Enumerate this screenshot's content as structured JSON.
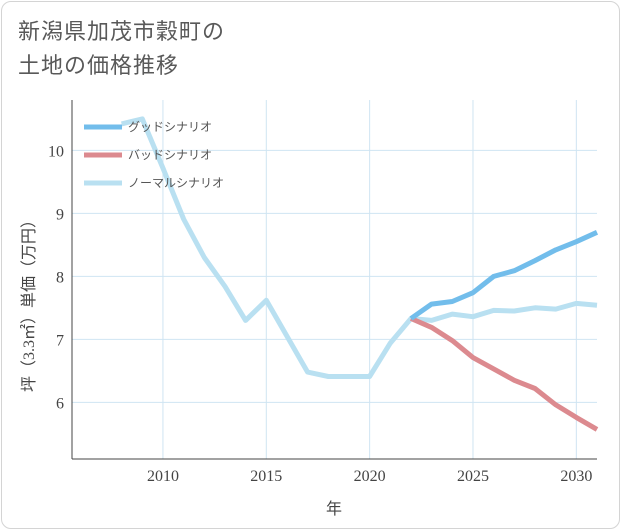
{
  "title": {
    "line1": "新潟県加茂市穀町の",
    "line2": "土地の価格推移"
  },
  "colors": {
    "good": "#72bdeb",
    "bad": "#dc8a8f",
    "normal": "#b9e0f1",
    "grid": "#cfe4f2",
    "axis": "#444444"
  },
  "chart_data": {
    "type": "line",
    "xlabel": "年",
    "ylabel": "坪（3.3㎡）単価（万円）",
    "xlim": [
      2005.6,
      2031
    ],
    "ylim": [
      5.1,
      10.8
    ],
    "x_ticks": [
      2010,
      2015,
      2020,
      2025,
      2030
    ],
    "y_ticks": [
      6,
      7,
      8,
      9,
      10
    ],
    "grid": true,
    "legend_position": "top-left",
    "series": [
      {
        "name": "グッドシナリオ",
        "color_key": "good",
        "x": [
          2022,
          2023,
          2024,
          2025,
          2026,
          2027,
          2028,
          2029,
          2030,
          2031
        ],
        "values": [
          7.33,
          7.56,
          7.6,
          7.74,
          8.0,
          8.09,
          8.25,
          8.42,
          8.55,
          8.7
        ]
      },
      {
        "name": "バッドシナリオ",
        "color_key": "bad",
        "x": [
          2022,
          2023,
          2024,
          2025,
          2026,
          2027,
          2028,
          2029,
          2030,
          2031
        ],
        "values": [
          7.33,
          7.19,
          6.98,
          6.71,
          6.53,
          6.35,
          6.22,
          5.96,
          5.76,
          5.57
        ]
      },
      {
        "name": "ノーマルシナリオ",
        "color_key": "normal",
        "x": [
          2008,
          2009,
          2010,
          2011,
          2012,
          2013,
          2014,
          2015,
          2016,
          2017,
          2018,
          2019,
          2020,
          2021,
          2022,
          2023,
          2024,
          2025,
          2026,
          2027,
          2028,
          2029,
          2030,
          2031
        ],
        "values": [
          10.42,
          10.5,
          9.72,
          8.91,
          8.3,
          7.84,
          7.3,
          7.62,
          7.05,
          6.48,
          6.41,
          6.41,
          6.41,
          6.94,
          7.33,
          7.3,
          7.4,
          7.36,
          7.46,
          7.45,
          7.5,
          7.48,
          7.57,
          7.54
        ]
      }
    ]
  }
}
